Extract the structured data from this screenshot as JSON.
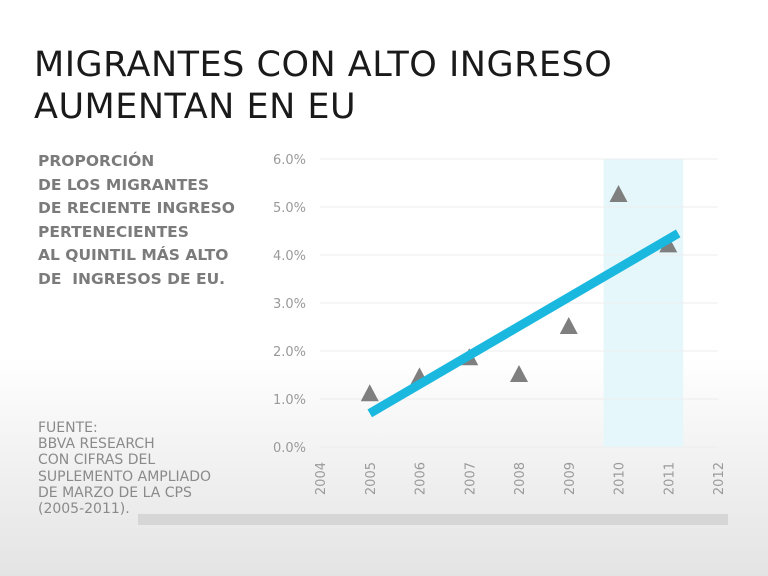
{
  "title_lines": [
    "MIGRANTES CON ALTO INGRESO",
    "AUMENTAN EN EU"
  ],
  "description_lines": [
    "PROPORCIÓN",
    "DE LOS MIGRANTES",
    "DE RECIENTE INGRESO",
    "PERTENECIENTES",
    "AL QUINTIL MÁS ALTO",
    "DE  INGRESOS DE EU."
  ],
  "source_lines": [
    "FUENTE:",
    "BBVA RESEARCH",
    "CON CIFRAS DEL",
    "SUPLEMENTO AMPLIADO",
    "DE MARZO DE LA CPS",
    "(2005-2011)."
  ],
  "colors": {
    "trend": "#1ab8df",
    "marker": "#7f7f7f",
    "highlight": "#e6f7fb",
    "grid": "#ececec"
  },
  "chart_data": {
    "type": "scatter",
    "title": "MIGRANTES CON ALTO INGRESO AUMENTAN EN EU",
    "xlabel": "",
    "ylabel": "",
    "x_ticks": [
      "2004",
      "2005",
      "2006",
      "2007",
      "2008",
      "2009",
      "2010",
      "2011",
      "2012"
    ],
    "y_ticks": [
      "0.0%",
      "1.0%",
      "2.0%",
      "3.0%",
      "4.0%",
      "5.0%",
      "6.0%"
    ],
    "xlim": [
      2004,
      2012
    ],
    "ylim": [
      0,
      6
    ],
    "grid": true,
    "highlight_range": [
      2009.7,
      2011.3
    ],
    "series": [
      {
        "name": "Proporción",
        "marker": "triangle",
        "x": [
          2005,
          2006,
          2007,
          2008,
          2009,
          2010,
          2011
        ],
        "y": [
          1.1,
          1.45,
          1.85,
          1.5,
          2.5,
          5.25,
          4.2
        ]
      }
    ],
    "trendline": {
      "x": [
        2005,
        2011.2
      ],
      "y": [
        0.7,
        4.45
      ]
    }
  }
}
